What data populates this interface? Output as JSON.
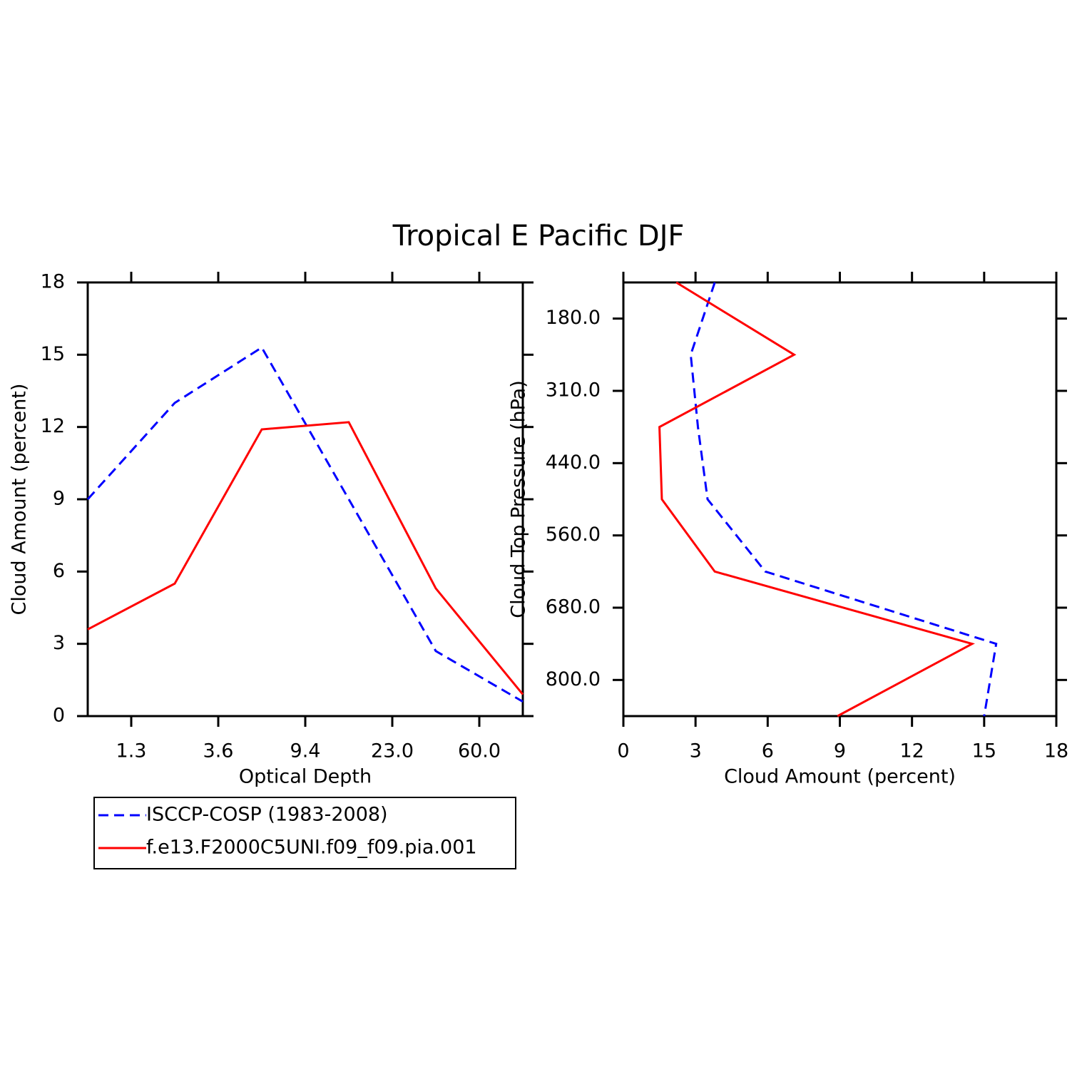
{
  "title": "Tropical E Pacific DJF",
  "chart_data": [
    {
      "type": "line",
      "xlabel": "Optical Depth",
      "ylabel": "Cloud Amount (percent)",
      "x": [
        0,
        1,
        2,
        3,
        4,
        5
      ],
      "xlim": [
        0,
        5
      ],
      "xticks": [
        {
          "value": 0.5,
          "label": "1.3"
        },
        {
          "value": 1.5,
          "label": "3.6"
        },
        {
          "value": 2.5,
          "label": "9.4"
        },
        {
          "value": 3.5,
          "label": "23.0"
        },
        {
          "value": 4.5,
          "label": "60.0"
        }
      ],
      "ylim": [
        0,
        18
      ],
      "yticks": [
        0,
        3,
        6,
        9,
        12,
        15,
        18
      ],
      "series": [
        {
          "name": "ISCCP-COSP (1983-2008)",
          "color": "#0000ff",
          "style": "dashed",
          "values": [
            9.0,
            13.0,
            15.3,
            9.0,
            2.7,
            0.6
          ]
        },
        {
          "name": "f.e13.F2000C5UNI.f09_f09.pia.001",
          "color": "#ff0000",
          "style": "solid",
          "values": [
            3.6,
            5.5,
            11.9,
            12.2,
            5.3,
            0.9
          ]
        }
      ]
    },
    {
      "type": "line",
      "orientation": "horizontal",
      "xlabel": "Cloud Amount (percent)",
      "ylabel": "Cloud Top Pressure (hPa)",
      "xlim": [
        0,
        18
      ],
      "xticks": [
        0,
        3,
        6,
        9,
        12,
        15,
        18
      ],
      "y": [
        0,
        1,
        2,
        3,
        4,
        5,
        6
      ],
      "ylim": [
        6,
        0
      ],
      "yticks": [
        {
          "value": 0.5,
          "label": "180.0"
        },
        {
          "value": 1.5,
          "label": "310.0"
        },
        {
          "value": 2.5,
          "label": "440.0"
        },
        {
          "value": 3.5,
          "label": "560.0"
        },
        {
          "value": 4.5,
          "label": "680.0"
        },
        {
          "value": 5.5,
          "label": "800.0"
        }
      ],
      "series": [
        {
          "color": "#0000ff",
          "style": "dashed",
          "values": [
            3.8,
            2.8,
            3.1,
            3.5,
            5.9,
            15.5,
            15.0
          ]
        },
        {
          "color": "#ff0000",
          "style": "solid",
          "values": [
            2.2,
            7.1,
            1.5,
            1.6,
            3.8,
            14.5,
            8.9
          ]
        }
      ]
    }
  ]
}
